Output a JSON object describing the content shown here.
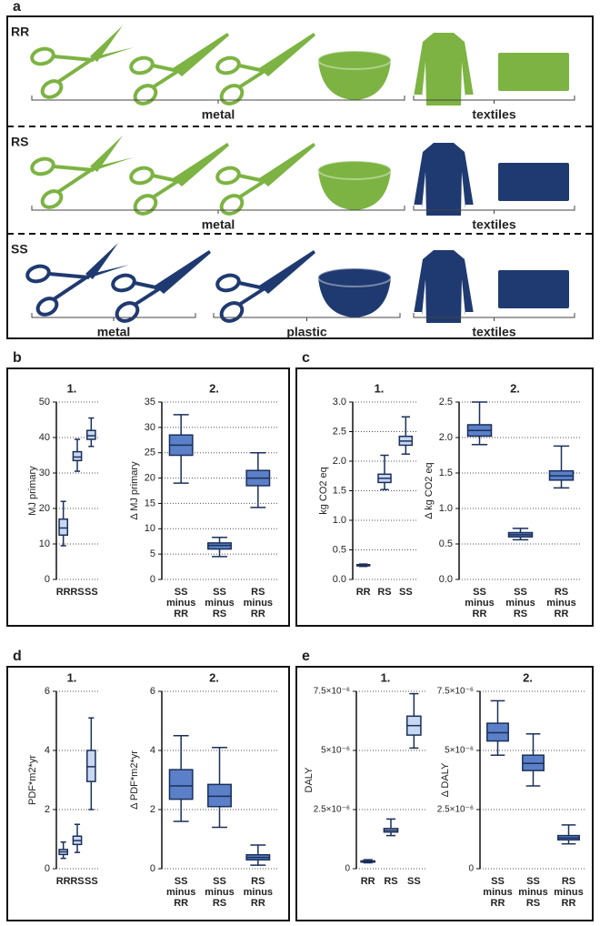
{
  "panel_a": {
    "label": "a",
    "rows": [
      {
        "label": "RR",
        "groups": [
          "metal",
          "textiles"
        ]
      },
      {
        "label": "RS",
        "groups": [
          "metal",
          "textiles"
        ]
      },
      {
        "label": "SS",
        "groups": [
          "metal",
          "plastic",
          "textiles"
        ]
      }
    ]
  },
  "chart_data": [
    {
      "type": "box",
      "panel": "b",
      "title": "1.",
      "ylabel": "MJ primary",
      "categories": [
        "RR",
        "RS",
        "SS"
      ],
      "color": "#c9d8f2",
      "whislo": [
        9.5,
        30.5,
        37.5
      ],
      "q1": [
        12.5,
        33.5,
        39.5
      ],
      "median": [
        14.5,
        34.5,
        40.5
      ],
      "q3": [
        17,
        36,
        42
      ],
      "whishi": [
        22,
        39.5,
        45.5
      ],
      "ylim": [
        0,
        50
      ],
      "yticks": [
        0,
        10,
        20,
        30,
        40,
        50
      ],
      "grid": true
    },
    {
      "type": "box",
      "title": "2.",
      "ylabel": "Δ MJ primary",
      "categories": [
        "SS minus RR",
        "SS minus RS",
        "RS minus RR"
      ],
      "color": "#5b80c8",
      "whislo": [
        19,
        4.5,
        14.2
      ],
      "q1": [
        24.5,
        6,
        18.5
      ],
      "median": [
        26.5,
        6.7,
        20
      ],
      "q3": [
        28.5,
        7.2,
        21.5
      ],
      "whishi": [
        32.5,
        8.3,
        25
      ],
      "ylim": [
        0,
        35
      ],
      "yticks": [
        0,
        5,
        10,
        15,
        20,
        25,
        30,
        35
      ],
      "grid": true
    },
    {
      "type": "box",
      "panel": "c",
      "title": "1.",
      "ylabel": "kg CO2 eq",
      "categories": [
        "RR",
        "RS",
        "SS"
      ],
      "color": "#c9d8f2",
      "whislo": [
        0.22,
        1.52,
        2.12
      ],
      "q1": [
        0.23,
        1.64,
        2.27
      ],
      "median": [
        0.24,
        1.71,
        2.34
      ],
      "q3": [
        0.25,
        1.78,
        2.42
      ],
      "whishi": [
        0.26,
        2.1,
        2.75
      ],
      "ylim": [
        0,
        3
      ],
      "yticks": [
        {
          "value": 0,
          "label": "0.0"
        },
        0.5,
        {
          "value": 1,
          "label": "1.0"
        },
        1.5,
        {
          "value": 2,
          "label": "2.0"
        },
        2.5,
        {
          "value": 3,
          "label": "3.0"
        }
      ],
      "grid": true
    },
    {
      "type": "box",
      "title": "2.",
      "ylabel": "Δ kg CO2 eq",
      "categories": [
        "SS minus RR",
        "SS minus RS",
        "RS minus RR"
      ],
      "color": "#5b80c8",
      "whislo": [
        1.9,
        0.56,
        1.29
      ],
      "q1": [
        2.02,
        0.6,
        1.4
      ],
      "median": [
        2.1,
        0.63,
        1.46
      ],
      "q3": [
        2.18,
        0.66,
        1.53
      ],
      "whishi": [
        2.5,
        0.72,
        1.88
      ],
      "ylim": [
        0,
        2.5
      ],
      "yticks": [
        {
          "value": 0,
          "label": "0.0"
        },
        0.5,
        {
          "value": 1,
          "label": "1.0"
        },
        1.5,
        {
          "value": 2,
          "label": "2.0"
        },
        2.5
      ],
      "grid": true
    },
    {
      "type": "box",
      "panel": "d",
      "title": "1.",
      "ylabel": "PDF*m2*yr",
      "categories": [
        "RR",
        "RS",
        "SS"
      ],
      "color": "#c9d8f2",
      "whislo": [
        0.35,
        0.55,
        2.0
      ],
      "q1": [
        0.48,
        0.82,
        2.95
      ],
      "median": [
        0.57,
        0.95,
        3.45
      ],
      "q3": [
        0.65,
        1.1,
        4.0
      ],
      "whishi": [
        0.9,
        1.5,
        5.1
      ],
      "ylim": [
        0,
        6
      ],
      "yticks": [
        0,
        2,
        4,
        6
      ],
      "grid": true
    },
    {
      "type": "box",
      "title": "2.",
      "ylabel": "Δ PDF*m2*yr",
      "categories": [
        "SS minus RR",
        "SS minus RS",
        "RS minus RR"
      ],
      "color": "#5b80c8",
      "whislo": [
        1.6,
        1.4,
        0.12
      ],
      "q1": [
        2.35,
        2.1,
        0.3
      ],
      "median": [
        2.8,
        2.45,
        0.38
      ],
      "q3": [
        3.35,
        2.85,
        0.47
      ],
      "whishi": [
        4.5,
        4.1,
        0.8
      ],
      "ylim": [
        0,
        6
      ],
      "yticks": [
        0,
        2,
        4,
        6
      ],
      "grid": true
    },
    {
      "type": "box",
      "panel": "e",
      "title": "1.",
      "ylabel": "DALY",
      "categories": [
        "RR",
        "RS",
        "SS"
      ],
      "color": "#c9d8f2",
      "whislo": [
        2.5e-07,
        1.4e-06,
        5.1e-06
      ],
      "q1": [
        2.8e-07,
        1.55e-06,
        5.65e-06
      ],
      "median": [
        3e-07,
        1.62e-06,
        6.05e-06
      ],
      "q3": [
        3.3e-07,
        1.7e-06,
        6.45e-06
      ],
      "whishi": [
        3.8e-07,
        2.1e-06,
        7.4e-06
      ],
      "ylim": [
        0,
        7.5e-06
      ],
      "yticks": [
        0,
        {
          "value": 2.5e-06,
          "label": "2.5×10⁻⁶"
        },
        {
          "value": 5e-06,
          "label": "5×10⁻⁶"
        },
        {
          "value": 7.5e-06,
          "label": "7.5×10⁻⁶"
        }
      ],
      "grid": true
    },
    {
      "type": "box",
      "title": "2.",
      "ylabel": "Δ DALY",
      "categories": [
        "SS minus RR",
        "SS minus RS",
        "RS minus RR"
      ],
      "color": "#5b80c8",
      "whislo": [
        4.8e-06,
        3.5e-06,
        1.05e-06
      ],
      "q1": [
        5.4e-06,
        4.15e-06,
        1.22e-06
      ],
      "median": [
        5.75e-06,
        4.45e-06,
        1.3e-06
      ],
      "q3": [
        6.15e-06,
        4.8e-06,
        1.4e-06
      ],
      "whishi": [
        7.1e-06,
        5.7e-06,
        1.85e-06
      ],
      "ylim": [
        0,
        7.5e-06
      ],
      "yticks": [
        0,
        {
          "value": 2.5e-06,
          "label": "2.5×10⁻⁶"
        },
        {
          "value": 5e-06,
          "label": "5×10⁻⁶"
        },
        {
          "value": 7.5e-06,
          "label": "7.5×10⁻⁶"
        }
      ],
      "grid": true
    }
  ]
}
